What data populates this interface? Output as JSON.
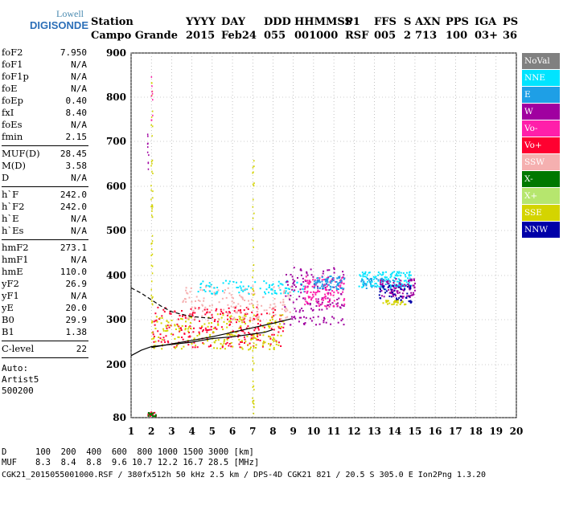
{
  "logo": {
    "line1": "Lowell",
    "line2": "DIGISONDE"
  },
  "header": {
    "row1": [
      "Station",
      "YYYY",
      "DAY",
      "DDD",
      "HHMMSS",
      "P1",
      "FFS",
      "S",
      "AXN",
      "PPS",
      "IGA",
      "PS"
    ],
    "row2": [
      "Campo Grande",
      "2015",
      "Feb24",
      "055",
      "001000",
      "RSF",
      "005",
      "2",
      "713",
      "100",
      "03+",
      "36"
    ]
  },
  "params": {
    "group1": [
      {
        "k": "foF2",
        "v": "7.950"
      },
      {
        "k": "foF1",
        "v": "N/A"
      },
      {
        "k": "foF1p",
        "v": "N/A"
      },
      {
        "k": "foE",
        "v": "N/A"
      },
      {
        "k": "foEp",
        "v": "0.40"
      },
      {
        "k": "fxI",
        "v": "8.40"
      },
      {
        "k": "foEs",
        "v": "N/A"
      },
      {
        "k": "fmin",
        "v": "2.15"
      }
    ],
    "group2": [
      {
        "k": "MUF(D)",
        "v": "28.45"
      },
      {
        "k": "M(D)",
        "v": "3.58"
      },
      {
        "k": "D",
        "v": "N/A"
      }
    ],
    "group3": [
      {
        "k": "h`F",
        "v": "242.0"
      },
      {
        "k": "h`F2",
        "v": "242.0"
      },
      {
        "k": "h`E",
        "v": "N/A"
      },
      {
        "k": "h`Es",
        "v": "N/A"
      }
    ],
    "group4": [
      {
        "k": "hmF2",
        "v": "273.1"
      },
      {
        "k": "hmF1",
        "v": "N/A"
      },
      {
        "k": "hmE",
        "v": "110.0"
      },
      {
        "k": "yF2",
        "v": "26.9"
      },
      {
        "k": "yF1",
        "v": "N/A"
      },
      {
        "k": "yE",
        "v": "20.0"
      },
      {
        "k": "B0",
        "v": "29.9"
      },
      {
        "k": "B1",
        "v": "1.38"
      }
    ],
    "group5": [
      {
        "k": "C-level",
        "v": "22"
      }
    ],
    "auto": [
      "Auto:",
      "Artist5",
      "500200"
    ]
  },
  "legend": [
    {
      "label": "NoVal",
      "color": "#808080"
    },
    {
      "label": "NNE",
      "color": "#00e4ff"
    },
    {
      "label": "E",
      "color": "#1e9fe6"
    },
    {
      "label": "W",
      "color": "#a000a0"
    },
    {
      "label": "Vo-",
      "color": "#ff1faa"
    },
    {
      "label": "Vo+",
      "color": "#ff0030"
    },
    {
      "label": "SSW",
      "color": "#f5b0b0"
    },
    {
      "label": "X-",
      "color": "#007800"
    },
    {
      "label": "X+",
      "color": "#b6e66e"
    },
    {
      "label": "SSE",
      "color": "#d4d400"
    },
    {
      "label": "NNW",
      "color": "#0000a8"
    }
  ],
  "footer": {
    "d_label": "D",
    "d_values": "100  200  400  600  800 1000 1500 3000 [km]",
    "muf_label": "MUF",
    "muf_values": "8.3  8.4  8.8  9.6 10.7 12.2 16.7 28.5 [MHz]",
    "file_line": "CGK21_2015055001000.RSF / 380fx512h 50 kHz 2.5 km / DPS-4D CGK21 821 / 20.5 S 305.0 E Ion2Png 1.3.20"
  },
  "chart_data": {
    "type": "scatter",
    "xlim": [
      1,
      20
    ],
    "ylim": [
      80,
      900
    ],
    "x_ticks": [
      1,
      2,
      3,
      4,
      5,
      6,
      7,
      8,
      9,
      10,
      11,
      12,
      13,
      14,
      15,
      16,
      17,
      18,
      19,
      20
    ],
    "y_ticks": [
      80,
      200,
      300,
      400,
      500,
      600,
      700,
      800,
      900
    ],
    "grid": true,
    "trace_lines": [
      {
        "name": "",
        "style": "solid",
        "x": [
          1.0,
          1.5,
          2.0,
          3.0,
          4.0,
          5.0,
          6.0,
          7.0,
          7.6,
          8.0
        ],
        "y": [
          220,
          232,
          240,
          245,
          250,
          258,
          262,
          268,
          272,
          278
        ]
      },
      {
        "name": "",
        "style": "solid",
        "x": [
          2.0,
          3.0,
          4.0,
          5.0,
          6.0,
          7.0,
          8.0,
          8.9
        ],
        "y": [
          238,
          246,
          254,
          262,
          272,
          282,
          292,
          302
        ]
      },
      {
        "name": "",
        "style": "dashed",
        "x": [
          1.0,
          1.5,
          2.0,
          2.5,
          3.0,
          3.5,
          4.0,
          4.5,
          5.0
        ],
        "y": [
          372,
          360,
          345,
          330,
          318,
          312,
          307,
          305,
          303
        ]
      }
    ],
    "echo_clusters": [
      {
        "color": "#ff0030",
        "x": [
          2,
          8.5
        ],
        "y": [
          240,
          330
        ],
        "count": 260
      },
      {
        "color": "#d4d400",
        "x": [
          2,
          8.5
        ],
        "y": [
          235,
          315
        ],
        "count": 200
      },
      {
        "color": "#f5b0b0",
        "x": [
          3.5,
          9.0
        ],
        "y": [
          300,
          380
        ],
        "count": 160
      },
      {
        "color": "#00e4ff",
        "x": [
          4.2,
          9.5
        ],
        "y": [
          360,
          390
        ],
        "count": 90
      },
      {
        "color": "#a000a0",
        "x": [
          8.5,
          11.5
        ],
        "y": [
          290,
          420
        ],
        "count": 150
      },
      {
        "color": "#ff1faa",
        "x": [
          9.5,
          11.5
        ],
        "y": [
          330,
          400
        ],
        "count": 120
      },
      {
        "color": "#1e9fe6",
        "x": [
          10.0,
          11.5
        ],
        "y": [
          370,
          400
        ],
        "count": 70
      },
      {
        "color": "#00e4ff",
        "x": [
          12.2,
          14.8
        ],
        "y": [
          375,
          410
        ],
        "count": 120
      },
      {
        "color": "#1e9fe6",
        "x": [
          12.3,
          14.3
        ],
        "y": [
          370,
          395
        ],
        "count": 60
      },
      {
        "color": "#a000a0",
        "x": [
          13.2,
          15.0
        ],
        "y": [
          350,
          395
        ],
        "count": 90
      },
      {
        "color": "#0000a8",
        "x": [
          13.2,
          14.8
        ],
        "y": [
          340,
          380
        ],
        "count": 50
      },
      {
        "color": "#d4d400",
        "x": [
          13.3,
          14.5
        ],
        "y": [
          335,
          345
        ],
        "count": 30
      },
      {
        "color": "#ff0030",
        "x": [
          1.8,
          2.2
        ],
        "y": [
          85,
          95
        ],
        "count": 20
      },
      {
        "color": "#007800",
        "x": [
          1.8,
          2.2
        ],
        "y": [
          85,
          95
        ],
        "count": 14
      }
    ],
    "vertical_streaks": [
      {
        "color": "#d4d400",
        "x": 2.0,
        "y": [
          240,
          850
        ]
      },
      {
        "color": "#a000a0",
        "x": 1.8,
        "y": [
          600,
          720
        ]
      },
      {
        "color": "#d4d400",
        "x": 7.0,
        "y": [
          90,
          690
        ]
      },
      {
        "color": "#ff1faa",
        "x": 2.0,
        "y": [
          740,
          850
        ]
      }
    ]
  }
}
